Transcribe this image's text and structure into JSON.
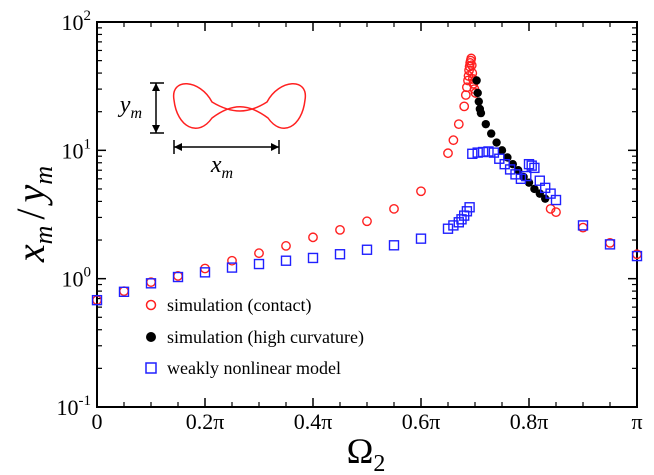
{
  "chart_data": {
    "type": "scatter",
    "xlabel": "Ω",
    "xlabel_sub": "2",
    "ylabel_parts": {
      "x": "x",
      "x_sub": "m",
      "slash": "/",
      "y": "y",
      "y_sub": "m"
    },
    "xlim": [
      0,
      1
    ],
    "xlim_note": "x in units of π",
    "ylim": [
      0.1,
      100
    ],
    "yscale": "log",
    "x_ticks": [
      0,
      0.2,
      0.4,
      0.6,
      0.8,
      1
    ],
    "x_tick_labels": [
      "0",
      "0.2π",
      "0.4π",
      "0.6π",
      "0.8π",
      "π"
    ],
    "y_ticks": [
      0.1,
      1,
      10,
      100
    ],
    "y_tick_labels": [
      {
        "base": "10",
        "exp": "-1"
      },
      {
        "base": "10",
        "exp": "0"
      },
      {
        "base": "10",
        "exp": "1"
      },
      {
        "base": "10",
        "exp": "2"
      }
    ],
    "legend_position": "bottom-left",
    "series": [
      {
        "name": "simulation (contact)",
        "marker": "open-circle",
        "color": "#ff2020",
        "points": [
          [
            0.0,
            0.68
          ],
          [
            0.05,
            0.8
          ],
          [
            0.1,
            0.94
          ],
          [
            0.15,
            1.05
          ],
          [
            0.2,
            1.2
          ],
          [
            0.25,
            1.38
          ],
          [
            0.3,
            1.58
          ],
          [
            0.35,
            1.8
          ],
          [
            0.4,
            2.1
          ],
          [
            0.45,
            2.4
          ],
          [
            0.5,
            2.8
          ],
          [
            0.55,
            3.5
          ],
          [
            0.6,
            4.8
          ],
          [
            0.65,
            9.5
          ],
          [
            0.66,
            12.0
          ],
          [
            0.67,
            16.0
          ],
          [
            0.68,
            22.0
          ],
          [
            0.683,
            27.0
          ],
          [
            0.685,
            31.0
          ],
          [
            0.687,
            35.0
          ],
          [
            0.688,
            38.0
          ],
          [
            0.689,
            42.0
          ],
          [
            0.69,
            45.0
          ],
          [
            0.691,
            48.0
          ],
          [
            0.692,
            50.0
          ],
          [
            0.693,
            52.0
          ],
          [
            0.694,
            46.0
          ],
          [
            0.695,
            40.0
          ],
          [
            0.696,
            36.0
          ],
          [
            0.697,
            33.0
          ],
          [
            0.699,
            30.0
          ],
          [
            0.701,
            28.0
          ],
          [
            0.84,
            3.5
          ],
          [
            0.85,
            3.3
          ],
          [
            0.9,
            2.5
          ],
          [
            0.95,
            1.9
          ],
          [
            1.0,
            1.55
          ]
        ]
      },
      {
        "name": "simulation (high curvature)",
        "marker": "filled-circle",
        "color": "#000000",
        "points": [
          [
            0.703,
            35.0
          ],
          [
            0.705,
            28.0
          ],
          [
            0.707,
            24.0
          ],
          [
            0.709,
            21.0
          ],
          [
            0.711,
            19.5
          ],
          [
            0.72,
            16.0
          ],
          [
            0.73,
            13.5
          ],
          [
            0.74,
            11.5
          ],
          [
            0.75,
            10.0
          ],
          [
            0.76,
            8.8
          ],
          [
            0.77,
            7.8
          ],
          [
            0.78,
            7.0
          ],
          [
            0.79,
            6.2
          ],
          [
            0.8,
            5.6
          ],
          [
            0.81,
            5.0
          ],
          [
            0.82,
            4.6
          ],
          [
            0.83,
            4.2
          ]
        ]
      },
      {
        "name": "weakly nonlinear model",
        "marker": "open-square",
        "color": "#2020ff",
        "points": [
          [
            0.0,
            0.68
          ],
          [
            0.05,
            0.79
          ],
          [
            0.1,
            0.92
          ],
          [
            0.15,
            1.03
          ],
          [
            0.2,
            1.12
          ],
          [
            0.25,
            1.22
          ],
          [
            0.3,
            1.3
          ],
          [
            0.35,
            1.38
          ],
          [
            0.4,
            1.45
          ],
          [
            0.45,
            1.55
          ],
          [
            0.5,
            1.68
          ],
          [
            0.55,
            1.82
          ],
          [
            0.6,
            2.05
          ],
          [
            0.65,
            2.45
          ],
          [
            0.66,
            2.6
          ],
          [
            0.67,
            2.75
          ],
          [
            0.675,
            2.9
          ],
          [
            0.68,
            3.1
          ],
          [
            0.685,
            3.35
          ],
          [
            0.69,
            3.6
          ],
          [
            0.695,
            9.4
          ],
          [
            0.705,
            9.6
          ],
          [
            0.715,
            9.7
          ],
          [
            0.725,
            9.8
          ],
          [
            0.735,
            9.6
          ],
          [
            0.745,
            8.6
          ],
          [
            0.755,
            7.8
          ],
          [
            0.765,
            7.1
          ],
          [
            0.775,
            6.5
          ],
          [
            0.785,
            6.0
          ],
          [
            0.795,
            6.3
          ],
          [
            0.8,
            7.8
          ],
          [
            0.805,
            7.6
          ],
          [
            0.81,
            7.3
          ],
          [
            0.82,
            5.8
          ],
          [
            0.83,
            5.1
          ],
          [
            0.84,
            4.6
          ],
          [
            0.85,
            4.1
          ],
          [
            0.9,
            2.6
          ],
          [
            0.95,
            1.85
          ],
          [
            1.0,
            1.5
          ]
        ]
      }
    ],
    "inset": {
      "ylabel": "y",
      "ylabel_sub": "m",
      "xlabel": "x",
      "xlabel_sub": "m"
    }
  }
}
